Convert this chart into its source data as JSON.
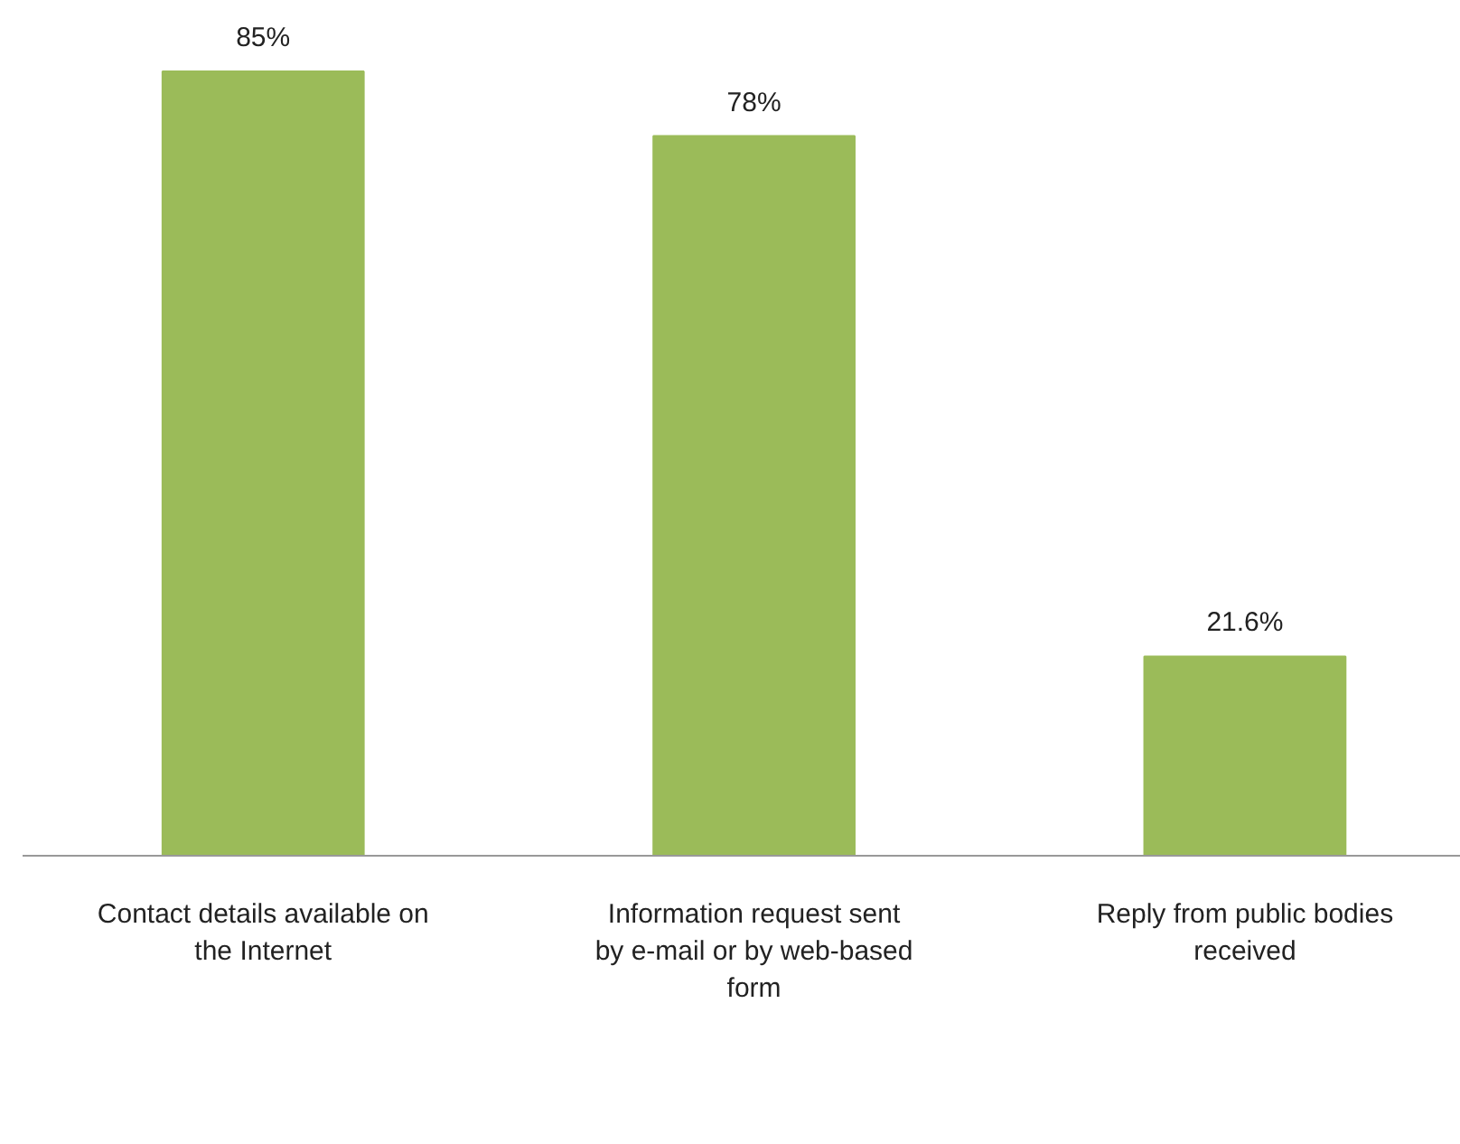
{
  "chart_data": {
    "type": "bar",
    "categories": [
      "Contact details available on\nthe Internet",
      "Information request sent\nby e-mail or by web-based\nform",
      "Reply from public bodies\nreceived"
    ],
    "values": [
      85,
      78,
      21.6
    ],
    "color": "#9bbb59",
    "data_labels": true,
    "value_labels": [
      "85%",
      "78%",
      "21.6%"
    ]
  }
}
